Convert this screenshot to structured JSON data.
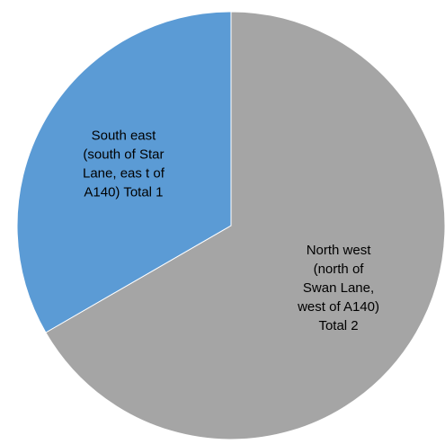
{
  "chart_data": {
    "type": "pie",
    "start_angle_deg": 0,
    "direction": "clockwise",
    "slices": [
      {
        "label_lines": [
          "North west",
          "(north of",
          "Swan Lane,",
          "west of A140)",
          "Total 2"
        ],
        "value": 2,
        "color": "#A5A5A5"
      },
      {
        "label_lines": [
          "South east",
          "(south of Star",
          "Lane, eas t of",
          "A140) Total 1"
        ],
        "value": 1,
        "color": "#5B9BD5"
      }
    ]
  }
}
